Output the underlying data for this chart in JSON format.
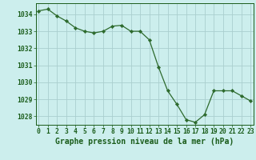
{
  "x": [
    0,
    1,
    2,
    3,
    4,
    5,
    6,
    7,
    8,
    9,
    10,
    11,
    12,
    13,
    14,
    15,
    16,
    17,
    18,
    19,
    20,
    21,
    22,
    23
  ],
  "y": [
    1034.2,
    1034.3,
    1033.9,
    1033.6,
    1033.2,
    1033.0,
    1032.9,
    1033.0,
    1033.3,
    1033.35,
    1033.0,
    1033.0,
    1032.5,
    1030.9,
    1029.5,
    1028.7,
    1027.8,
    1027.65,
    1028.1,
    1029.5,
    1029.5,
    1029.5,
    1029.2,
    1028.9
  ],
  "line_color": "#2d6a2d",
  "marker": "D",
  "marker_size": 2.2,
  "bg_color": "#cceeed",
  "grid_color": "#aacece",
  "ylabel_ticks": [
    1028,
    1029,
    1030,
    1031,
    1032,
    1033,
    1034
  ],
  "xlabel_ticks": [
    0,
    1,
    2,
    3,
    4,
    5,
    6,
    7,
    8,
    9,
    10,
    11,
    12,
    13,
    14,
    15,
    16,
    17,
    18,
    19,
    20,
    21,
    22,
    23
  ],
  "xlabel_labels": [
    "0",
    "1",
    "2",
    "3",
    "4",
    "5",
    "6",
    "7",
    "8",
    "9",
    "10",
    "11",
    "12",
    "13",
    "14",
    "15",
    "16",
    "17",
    "18",
    "19",
    "20",
    "21",
    "22",
    "23"
  ],
  "xlabel": "Graphe pression niveau de la mer (hPa)",
  "ylim": [
    1027.5,
    1034.65
  ],
  "xlim": [
    -0.3,
    23.3
  ],
  "tick_color": "#1a5c1a",
  "tick_fontsize": 5.8,
  "xlabel_fontsize": 7.0,
  "linewidth": 0.9
}
